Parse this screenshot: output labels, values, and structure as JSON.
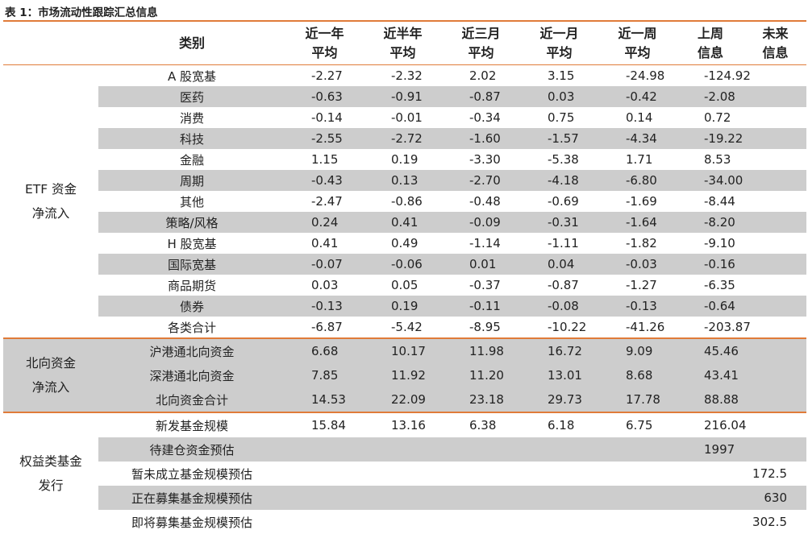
{
  "title": "表 1：市场流动性跟踪汇总信息",
  "headers": {
    "category": "类别",
    "cols": [
      {
        "l1": "近一年",
        "l2": "平均"
      },
      {
        "l1": "近半年",
        "l2": "平均"
      },
      {
        "l1": "近三月",
        "l2": "平均"
      },
      {
        "l1": "近一月",
        "l2": "平均"
      },
      {
        "l1": "近一周",
        "l2": "平均"
      },
      {
        "l1": "上周",
        "l2": "信息"
      },
      {
        "l1": "未来",
        "l2": "信息"
      }
    ]
  },
  "etf": {
    "group_l1": "ETF 资金",
    "group_l2": "净流入",
    "rows": [
      {
        "label": "A 股宽基",
        "v": [
          "-2.27",
          "-2.32",
          "2.02",
          "3.15",
          "-24.98",
          "-124.92",
          ""
        ]
      },
      {
        "label": "医药",
        "v": [
          "-0.63",
          "-0.91",
          "-0.87",
          "0.03",
          "-0.42",
          "-2.08",
          ""
        ]
      },
      {
        "label": "消费",
        "v": [
          "-0.14",
          "-0.01",
          "-0.34",
          "0.75",
          "0.14",
          "0.72",
          ""
        ]
      },
      {
        "label": "科技",
        "v": [
          "-2.55",
          "-2.72",
          "-1.60",
          "-1.57",
          "-4.34",
          "-19.22",
          ""
        ]
      },
      {
        "label": "金融",
        "v": [
          "1.15",
          "0.19",
          "-3.30",
          "-5.38",
          "1.71",
          "8.53",
          ""
        ]
      },
      {
        "label": "周期",
        "v": [
          "-0.43",
          "0.13",
          "-2.70",
          "-4.18",
          "-6.80",
          "-34.00",
          ""
        ]
      },
      {
        "label": "其他",
        "v": [
          "-2.47",
          "-0.86",
          "-0.48",
          "-0.69",
          "-1.69",
          "-8.44",
          ""
        ]
      },
      {
        "label": "策略/风格",
        "v": [
          "0.24",
          "0.41",
          "-0.09",
          "-0.31",
          "-1.64",
          "-8.20",
          ""
        ]
      },
      {
        "label": "H 股宽基",
        "v": [
          "0.41",
          "0.49",
          "-1.14",
          "-1.11",
          "-1.82",
          "-9.10",
          ""
        ]
      },
      {
        "label": "国际宽基",
        "v": [
          "-0.07",
          "-0.06",
          "0.01",
          "0.04",
          "-0.03",
          "-0.16",
          ""
        ]
      },
      {
        "label": "商品期货",
        "v": [
          "0.03",
          "0.05",
          "-0.37",
          "-0.87",
          "-1.27",
          "-6.35",
          ""
        ]
      },
      {
        "label": "债券",
        "v": [
          "-0.13",
          "0.19",
          "-0.11",
          "-0.08",
          "-0.13",
          "-0.64",
          ""
        ]
      },
      {
        "label": "各类合计",
        "v": [
          "-6.87",
          "-5.42",
          "-8.95",
          "-10.22",
          "-41.26",
          "-203.87",
          ""
        ]
      }
    ]
  },
  "north": {
    "group_l1": "北向资金",
    "group_l2": "净流入",
    "rows": [
      {
        "label": "沪港通北向资金",
        "v": [
          "6.68",
          "10.17",
          "11.98",
          "16.72",
          "9.09",
          "45.46",
          ""
        ]
      },
      {
        "label": "深港通北向资金",
        "v": [
          "7.85",
          "11.92",
          "11.20",
          "13.01",
          "8.68",
          "43.41",
          ""
        ]
      },
      {
        "label": "北向资金合计",
        "v": [
          "14.53",
          "22.09",
          "23.18",
          "29.73",
          "17.78",
          "88.88",
          ""
        ]
      }
    ]
  },
  "fund": {
    "group_l1": "权益类基金",
    "group_l2": "发行",
    "rows": [
      {
        "label": "新发基金规模",
        "v": [
          "15.84",
          "13.16",
          "6.38",
          "6.18",
          "6.75",
          "216.04",
          ""
        ]
      },
      {
        "label": "待建仓资金预估",
        "v": [
          "",
          "",
          "",
          "",
          "",
          "1997",
          ""
        ]
      },
      {
        "label": "暂未成立基金规模预估",
        "v": [
          "",
          "",
          "",
          "",
          "",
          "",
          "172.5"
        ]
      },
      {
        "label": "正在募集基金规模预估",
        "v": [
          "",
          "",
          "",
          "",
          "",
          "",
          "630"
        ]
      },
      {
        "label": "即将募集基金规模预估",
        "v": [
          "",
          "",
          "",
          "",
          "",
          "",
          "302.5"
        ]
      }
    ]
  }
}
